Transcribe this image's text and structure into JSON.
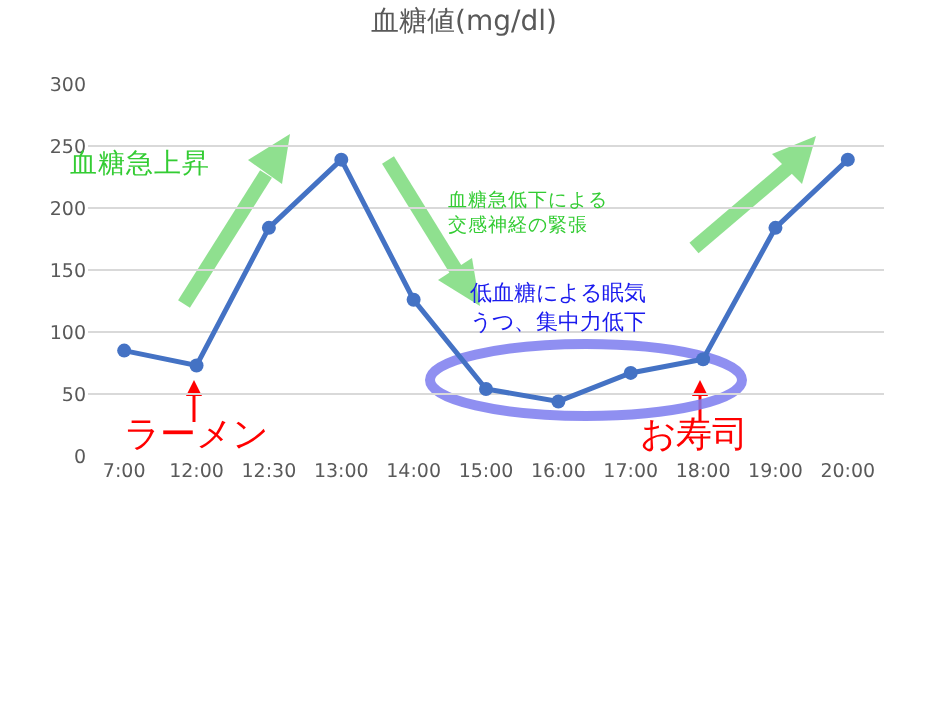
{
  "chart_data": {
    "type": "line",
    "title": "血糖値(mg/dl)",
    "categories": [
      "7:00",
      "12:00",
      "12:30",
      "13:00",
      "14:00",
      "15:00",
      "16:00",
      "17:00",
      "18:00",
      "19:00",
      "20:00"
    ],
    "series": [
      {
        "color": "#4472c4",
        "values": [
          85,
          73,
          184,
          239,
          126,
          54,
          44,
          67,
          78,
          184,
          239
        ]
      }
    ],
    "ylim": [
      0,
      300
    ],
    "yticks": [
      0,
      50,
      100,
      150,
      200,
      250,
      300
    ],
    "grid": "y",
    "marker": "circle",
    "line_style": "solid",
    "annotations": [
      "血糖急上昇",
      "血糖急低下による交感神経の緊張",
      "低血糖による眠気うつ、集中力低下",
      "ラーメン",
      "お寿司"
    ]
  }
}
